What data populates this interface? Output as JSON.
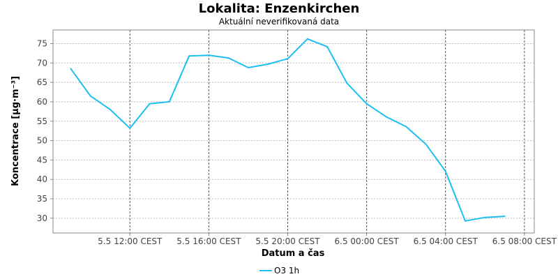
{
  "chart_data": {
    "type": "line",
    "title": "Lokalita: Enzenkirchen",
    "subtitle": "Aktuální neverifikovaná data",
    "xlabel": "Datum a čas",
    "ylabel": "Koncentrace [µg·m⁻³]",
    "x_ticks": [
      {
        "hour": 12,
        "label": "5.5 12:00 CEST"
      },
      {
        "hour": 16,
        "label": "5.5 16:00 CEST"
      },
      {
        "hour": 20,
        "label": "5.5 20:00 CEST"
      },
      {
        "hour": 24,
        "label": "6.5 00:00 CEST"
      },
      {
        "hour": 28,
        "label": "6.5 04:00 CEST"
      },
      {
        "hour": 32,
        "label": "6.5 08:00 CEST"
      }
    ],
    "y_ticks": [
      30,
      35,
      40,
      45,
      50,
      55,
      60,
      65,
      70,
      75
    ],
    "xlim_hours": [
      8.1,
      32.5
    ],
    "ylim": [
      26.2,
      78.5
    ],
    "grid": true,
    "legend_position": "bottom-center",
    "series": [
      {
        "name": "O3 1h",
        "color": "#1cbfef",
        "points": [
          {
            "hour": 9,
            "value": 68.5
          },
          {
            "hour": 10,
            "value": 61.5
          },
          {
            "hour": 11,
            "value": 58.0
          },
          {
            "hour": 12,
            "value": 53.2
          },
          {
            "hour": 13,
            "value": 59.5
          },
          {
            "hour": 14,
            "value": 60.0
          },
          {
            "hour": 15,
            "value": 71.8
          },
          {
            "hour": 16,
            "value": 72.0
          },
          {
            "hour": 17,
            "value": 71.3
          },
          {
            "hour": 18,
            "value": 68.8
          },
          {
            "hour": 19,
            "value": 69.7
          },
          {
            "hour": 20,
            "value": 71.1
          },
          {
            "hour": 21,
            "value": 76.2
          },
          {
            "hour": 22,
            "value": 74.2
          },
          {
            "hour": 23,
            "value": 64.8
          },
          {
            "hour": 24,
            "value": 59.5
          },
          {
            "hour": 25,
            "value": 56.1
          },
          {
            "hour": 26,
            "value": 53.6
          },
          {
            "hour": 27,
            "value": 49.1
          },
          {
            "hour": 28,
            "value": 42.1
          },
          {
            "hour": 29,
            "value": 29.3
          },
          {
            "hour": 30,
            "value": 30.2
          },
          {
            "hour": 31,
            "value": 30.5
          }
        ]
      }
    ]
  }
}
